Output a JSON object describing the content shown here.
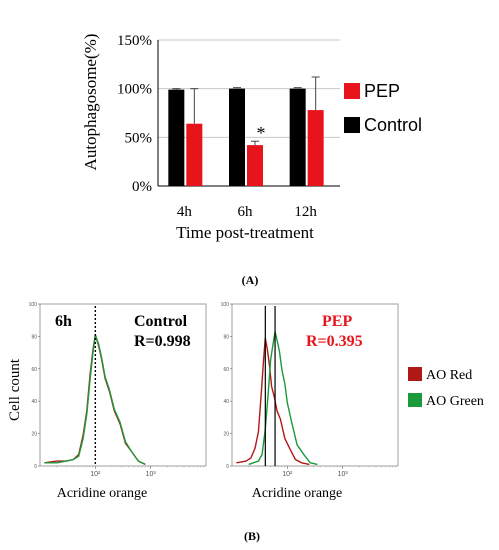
{
  "panel_labels": [
    "(A)",
    "(B)"
  ],
  "colors": {
    "pep": "#e8141c",
    "control": "#000000",
    "ao_red": "#b01818",
    "ao_green": "#1a9a3a"
  },
  "chart_data": [
    {
      "type": "bar",
      "panel": "A",
      "title": "",
      "xlabel": "Time post-treatment",
      "ylabel": "Autophagosome(%)",
      "ylim": [
        0,
        150
      ],
      "yticks": [
        "0%",
        "50%",
        "100%",
        "150%"
      ],
      "ytick_values": [
        0,
        50,
        100,
        150
      ],
      "categories": [
        "4h",
        "6h",
        "12h"
      ],
      "legend_position": "right",
      "series": [
        {
          "name": "Control",
          "color": "#000000",
          "values": [
            99,
            100,
            100
          ],
          "errors": [
            1,
            0,
            0
          ]
        },
        {
          "name": "PEP",
          "color": "#e8141c",
          "values": [
            64,
            42,
            78
          ],
          "errors": [
            36,
            4,
            34
          ]
        }
      ],
      "annotations": [
        {
          "text": "*",
          "category": "6h"
        }
      ]
    },
    {
      "type": "line",
      "panel": "B-left",
      "title": "Control",
      "corner_label": "6h",
      "stat_label": "R=0.998",
      "xlabel": "Acridine orange",
      "ylabel": "Cell count",
      "xscale": "log",
      "xlim": [
        10,
        10000
      ],
      "xticks": [
        "10²",
        "10³"
      ],
      "xtick_values": [
        100,
        1000
      ],
      "ylim": [
        0,
        100
      ],
      "yticks": [
        "0",
        "20",
        "40",
        "60",
        "80",
        "100"
      ],
      "ytick_values": [
        0,
        20,
        40,
        60,
        80,
        100
      ],
      "vlines": [
        100
      ],
      "series": [
        {
          "name": "AO Red",
          "color": "#b01818",
          "x": [
            12,
            20,
            30,
            40,
            50,
            60,
            70,
            80,
            90,
            100,
            115,
            130,
            150,
            180,
            220,
            280,
            350,
            450,
            600,
            800
          ],
          "y": [
            2,
            3,
            3,
            4,
            8,
            18,
            35,
            55,
            72,
            80,
            75,
            65,
            55,
            45,
            35,
            25,
            15,
            8,
            3,
            1
          ]
        },
        {
          "name": "AO Green",
          "color": "#1a9a3a",
          "x": [
            12,
            20,
            30,
            40,
            50,
            60,
            70,
            80,
            90,
            100,
            115,
            130,
            150,
            180,
            220,
            280,
            350,
            450,
            600,
            800
          ],
          "y": [
            2,
            2,
            3,
            4,
            7,
            16,
            33,
            52,
            70,
            80,
            76,
            66,
            56,
            46,
            36,
            26,
            16,
            8,
            3,
            1
          ]
        }
      ]
    },
    {
      "type": "line",
      "panel": "B-right",
      "title": "PEP",
      "stat_label": "R=0.395",
      "xlabel": "Acridine orange",
      "ylabel": "",
      "xscale": "log",
      "xlim": [
        10,
        10000
      ],
      "xticks": [
        "10²",
        "10³"
      ],
      "xtick_values": [
        100,
        1000
      ],
      "ylim": [
        0,
        100
      ],
      "yticks": [
        "0",
        "20",
        "40",
        "60",
        "80",
        "100"
      ],
      "ytick_values": [
        0,
        20,
        40,
        60,
        80,
        100
      ],
      "vlines": [
        40,
        60
      ],
      "legend_position": "right",
      "series": [
        {
          "name": "AO Red",
          "color": "#b01818",
          "x": [
            12,
            18,
            22,
            26,
            30,
            34,
            37,
            40,
            44,
            48,
            52,
            58,
            65,
            75,
            90,
            110,
            140,
            180,
            250
          ],
          "y": [
            2,
            3,
            5,
            10,
            22,
            45,
            65,
            78,
            72,
            60,
            50,
            42,
            35,
            28,
            18,
            10,
            4,
            2,
            1
          ]
        },
        {
          "name": "AO Green",
          "color": "#1a9a3a",
          "x": [
            20,
            30,
            35,
            40,
            45,
            50,
            55,
            60,
            66,
            72,
            80,
            90,
            100,
            120,
            150,
            200,
            260,
            350
          ],
          "y": [
            1,
            3,
            8,
            22,
            45,
            65,
            76,
            82,
            78,
            70,
            60,
            50,
            40,
            26,
            14,
            6,
            2,
            1
          ]
        }
      ]
    }
  ]
}
